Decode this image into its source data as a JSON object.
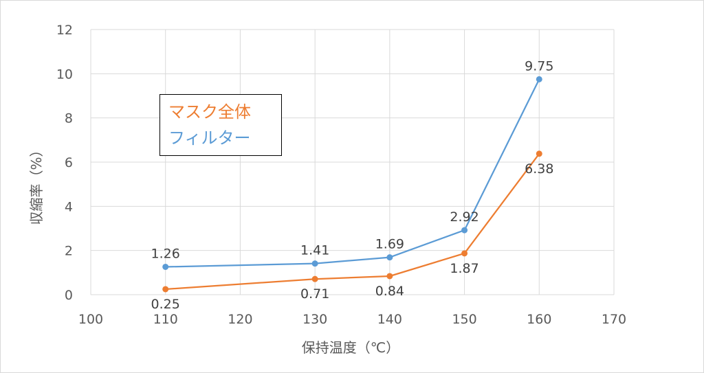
{
  "chart_data": {
    "type": "line",
    "xlabel": "保持温度（℃）",
    "ylabel": "収縮率（%）",
    "xlim": [
      100,
      170
    ],
    "ylim": [
      0,
      12
    ],
    "xticks": [
      "100",
      "110",
      "120",
      "130",
      "140",
      "150",
      "160",
      "170"
    ],
    "yticks": [
      "0",
      "2",
      "4",
      "6",
      "8",
      "10",
      "12"
    ],
    "grid": true,
    "legend_position": "top-left (inside plot)",
    "series": [
      {
        "name": "マスク全体",
        "color": "#ed7d31",
        "x": [
          110,
          130,
          140,
          150,
          160
        ],
        "values": [
          0.25,
          0.71,
          0.84,
          1.87,
          6.38
        ],
        "labels": [
          "0.25",
          "0.71",
          "0.84",
          "1.87",
          "6.38"
        ],
        "label_position": "below"
      },
      {
        "name": "フィルター",
        "color": "#5b9bd5",
        "x": [
          110,
          130,
          140,
          150,
          160
        ],
        "values": [
          1.26,
          1.41,
          1.69,
          2.92,
          9.75
        ],
        "labels": [
          "1.26",
          "1.41",
          "1.69",
          "2.92",
          "9.75"
        ],
        "label_position": "above"
      }
    ]
  }
}
